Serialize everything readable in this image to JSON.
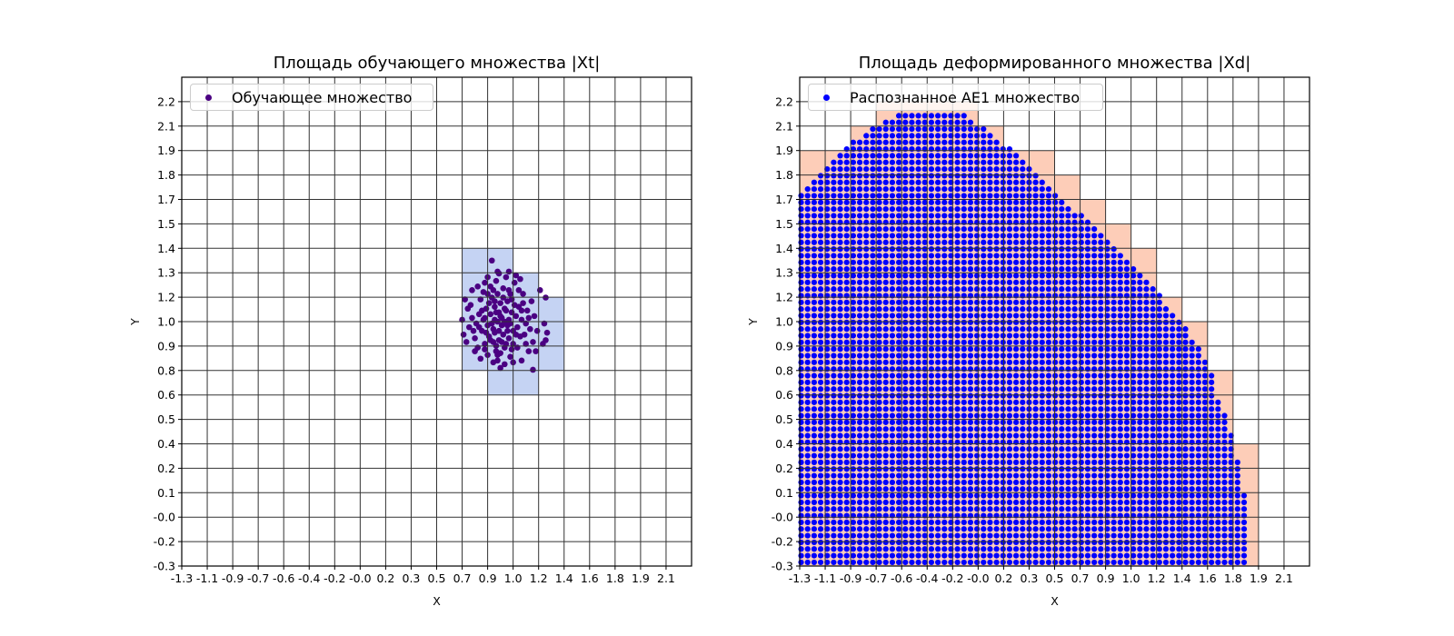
{
  "chart_data": [
    {
      "type": "scatter",
      "title": "Площадь обучающего множества |Xt|",
      "xlabel": "X",
      "ylabel": "Y",
      "xlim": [
        -1.28,
        2.32
      ],
      "ylim": [
        -0.3,
        2.34
      ],
      "grid": true,
      "legend_position": "upper-left",
      "xtick_labels": [
        "-1.3",
        "-1.1",
        "-0.9",
        "-0.7",
        "-0.6",
        "-0.4",
        "-0.2",
        "-0.0",
        "0.2",
        "0.3",
        "0.5",
        "0.7",
        "0.9",
        "1.0",
        "1.2",
        "1.4",
        "1.6",
        "1.8",
        "1.9",
        "2.1"
      ],
      "ytick_labels": [
        "-0.3",
        "-0.2",
        "-0.0",
        "0.1",
        "0.2",
        "0.4",
        "0.5",
        "0.6",
        "0.8",
        "0.9",
        "1.0",
        "1.2",
        "1.3",
        "1.4",
        "1.5",
        "1.7",
        "1.8",
        "1.9",
        "2.1",
        "2.2"
      ],
      "cell_color": "#c5d3f3",
      "cells": [
        {
          "x0": "0.7",
          "x1": "0.9",
          "y0": "0.8",
          "y1": "1.4"
        },
        {
          "x0": "0.9",
          "x1": "1.0",
          "y0": "0.6",
          "y1": "1.4"
        },
        {
          "x0": "1.0",
          "x1": "1.2",
          "y0": "0.6",
          "y1": "1.3"
        },
        {
          "x0": "1.2",
          "x1": "1.4",
          "y0": "0.8",
          "y1": "1.2"
        }
      ],
      "series": [
        {
          "name": "Обучающее множество",
          "color": "#4b0082",
          "points": [
            [
              0.95,
              1.02
            ],
            [
              0.97,
              1.05
            ],
            [
              0.92,
              0.98
            ],
            [
              1.01,
              1.08
            ],
            [
              0.88,
              1.0
            ],
            [
              0.99,
              0.95
            ],
            [
              1.04,
              1.01
            ],
            [
              0.93,
              1.1
            ],
            [
              0.9,
              1.06
            ],
            [
              1.06,
              0.97
            ],
            [
              0.96,
              0.92
            ],
            [
              0.85,
              1.03
            ],
            [
              1.02,
              1.13
            ],
            [
              0.94,
              0.89
            ],
            [
              1.08,
              1.05
            ],
            [
              0.91,
              1.15
            ],
            [
              0.98,
              1.0
            ],
            [
              1.0,
              1.02
            ],
            [
              0.96,
              1.07
            ],
            [
              0.93,
              1.03
            ],
            [
              0.89,
              0.94
            ],
            [
              1.03,
              0.93
            ],
            [
              1.1,
              1.1
            ],
            [
              0.87,
              1.09
            ],
            [
              0.95,
              1.17
            ],
            [
              1.05,
              1.14
            ],
            [
              0.92,
              0.91
            ],
            [
              1.0,
              0.88
            ],
            [
              0.97,
              0.85
            ],
            [
              1.09,
              0.99
            ],
            [
              0.84,
              0.97
            ],
            [
              0.82,
              1.06
            ],
            [
              0.8,
              1.01
            ],
            [
              1.12,
              1.03
            ],
            [
              1.14,
              0.95
            ],
            [
              0.86,
              0.9
            ],
            [
              0.99,
              1.2
            ],
            [
              1.03,
              1.19
            ],
            [
              0.9,
              1.21
            ],
            [
              1.07,
              1.23
            ],
            [
              0.94,
              1.24
            ],
            [
              1.13,
              1.17
            ],
            [
              0.83,
              1.14
            ],
            [
              0.79,
              0.93
            ],
            [
              1.16,
              1.08
            ],
            [
              1.18,
              0.98
            ],
            [
              0.81,
              0.88
            ],
            [
              0.88,
              0.84
            ],
            [
              0.95,
              0.81
            ],
            [
              1.04,
              0.83
            ],
            [
              1.09,
              0.88
            ],
            [
              1.15,
              0.9
            ],
            [
              0.77,
              1.04
            ],
            [
              0.78,
              0.97
            ],
            [
              0.76,
              1.11
            ],
            [
              0.85,
              1.18
            ],
            [
              1.01,
              1.26
            ],
            [
              0.96,
              1.28
            ],
            [
              0.88,
              1.26
            ],
            [
              1.11,
              1.25
            ],
            [
              1.19,
              1.13
            ],
            [
              1.21,
              1.05
            ],
            [
              1.23,
              0.97
            ],
            [
              1.2,
              0.91
            ],
            [
              1.17,
              0.86
            ],
            [
              1.25,
              1.19
            ],
            [
              1.29,
              1.15
            ],
            [
              1.28,
              1.01
            ],
            [
              1.3,
              0.96
            ],
            [
              1.27,
              0.9
            ],
            [
              1.22,
              0.86
            ],
            [
              1.29,
              0.92
            ],
            [
              0.74,
              1.09
            ],
            [
              0.75,
              0.99
            ],
            [
              0.79,
              0.86
            ],
            [
              0.83,
              0.82
            ],
            [
              0.92,
              0.8
            ],
            [
              1.0,
              0.79
            ],
            [
              1.06,
              0.8
            ],
            [
              1.12,
              0.81
            ],
            [
              0.97,
              0.77
            ],
            [
              1.2,
              0.76
            ],
            [
              0.91,
              1.35
            ],
            [
              0.95,
              1.29
            ],
            [
              1.03,
              1.29
            ],
            [
              1.08,
              1.27
            ],
            [
              0.81,
              1.21
            ],
            [
              0.77,
              1.19
            ],
            [
              0.86,
              1.23
            ],
            [
              0.93,
              0.96
            ],
            [
              0.98,
              0.91
            ],
            [
              1.02,
              0.97
            ],
            [
              1.05,
              1.07
            ],
            [
              0.91,
              1.01
            ],
            [
              0.89,
              1.12
            ],
            [
              1.07,
              1.11
            ],
            [
              0.97,
              1.12
            ],
            [
              1.01,
              0.9
            ],
            [
              0.94,
              0.86
            ],
            [
              1.06,
              0.9
            ],
            [
              0.87,
              0.96
            ],
            [
              1.11,
              0.94
            ],
            [
              1.13,
              1.12
            ],
            [
              0.84,
              1.08
            ],
            [
              0.99,
              1.15
            ],
            [
              0.92,
              1.19
            ],
            [
              1.04,
              1.17
            ],
            [
              1.1,
              1.19
            ],
            [
              0.88,
              1.17
            ],
            [
              1.15,
              1.01
            ],
            [
              0.82,
              0.99
            ],
            [
              1.17,
              1.04
            ],
            [
              1.12,
              1.08
            ],
            [
              0.86,
              1.04
            ],
            [
              0.96,
              0.97
            ],
            [
              1.03,
              1.03
            ],
            [
              0.94,
              1.07
            ],
            [
              1.0,
              1.09
            ],
            [
              0.9,
              0.92
            ],
            [
              1.08,
              0.95
            ],
            [
              0.98,
              1.04
            ],
            [
              1.02,
              1.0
            ],
            [
              0.93,
              1.13
            ],
            [
              1.05,
              0.87
            ],
            [
              0.95,
              0.84
            ],
            [
              0.86,
              0.87
            ],
            [
              0.7,
              1.03
            ],
            [
              0.71,
              0.95
            ],
            [
              0.72,
              1.14
            ],
            [
              0.73,
              0.91
            ]
          ]
        }
      ]
    },
    {
      "type": "scatter",
      "title": "Площадь деформированного множества |Xd|",
      "xlabel": "X",
      "ylabel": "Y",
      "xlim": [
        -1.28,
        2.32
      ],
      "ylim": [
        -0.3,
        2.34
      ],
      "grid": true,
      "legend_position": "upper-left",
      "xtick_labels": [
        "-1.3",
        "-1.1",
        "-0.9",
        "-0.7",
        "-0.6",
        "-0.4",
        "-0.2",
        "-0.0",
        "0.2",
        "0.3",
        "0.5",
        "0.7",
        "0.9",
        "1.0",
        "1.2",
        "1.4",
        "1.6",
        "1.8",
        "1.9",
        "2.1"
      ],
      "ytick_labels": [
        "-0.3",
        "-0.2",
        "-0.0",
        "0.1",
        "0.2",
        "0.4",
        "0.5",
        "0.6",
        "0.8",
        "0.9",
        "1.0",
        "1.2",
        "1.3",
        "1.4",
        "1.5",
        "1.7",
        "1.8",
        "1.9",
        "2.1",
        "2.2"
      ],
      "cell_color": "#fdcdb8",
      "cells": [
        {
          "x0": "-1.3",
          "x1": "-1.1",
          "y0": "-0.3",
          "y1": "1.9"
        },
        {
          "x0": "-1.1",
          "x1": "-0.9",
          "y0": "-0.3",
          "y1": "1.9"
        },
        {
          "x0": "-0.9",
          "x1": "-0.7",
          "y0": "-0.3",
          "y1": "2.1"
        },
        {
          "x0": "-0.7",
          "x1": "-0.6",
          "y0": "-0.3",
          "y1": "2.2"
        },
        {
          "x0": "-0.6",
          "x1": "-0.4",
          "y0": "-0.3",
          "y1": "2.2"
        },
        {
          "x0": "-0.4",
          "x1": "-0.2",
          "y0": "-0.3",
          "y1": "2.2"
        },
        {
          "x0": "-0.2",
          "x1": "-0.0",
          "y0": "-0.3",
          "y1": "2.2"
        },
        {
          "x0": "-0.0",
          "x1": "0.2",
          "y0": "-0.3",
          "y1": "2.1"
        },
        {
          "x0": "0.2",
          "x1": "0.3",
          "y0": "-0.3",
          "y1": "1.9"
        },
        {
          "x0": "0.3",
          "x1": "0.5",
          "y0": "-0.3",
          "y1": "1.9"
        },
        {
          "x0": "0.5",
          "x1": "0.7",
          "y0": "-0.3",
          "y1": "1.8"
        },
        {
          "x0": "0.7",
          "x1": "0.9",
          "y0": "-0.3",
          "y1": "1.7"
        },
        {
          "x0": "0.9",
          "x1": "1.0",
          "y0": "-0.3",
          "y1": "1.5"
        },
        {
          "x0": "1.0",
          "x1": "1.2",
          "y0": "-0.3",
          "y1": "1.4"
        },
        {
          "x0": "1.2",
          "x1": "1.4",
          "y0": "-0.3",
          "y1": "1.2"
        },
        {
          "x0": "1.4",
          "x1": "1.6",
          "y0": "-0.3",
          "y1": "1.0"
        },
        {
          "x0": "1.6",
          "x1": "1.8",
          "y0": "-0.3",
          "y1": "0.8"
        },
        {
          "x0": "1.8",
          "x1": "1.9",
          "y0": "-0.3",
          "y1": "0.4"
        }
      ],
      "series": [
        {
          "name": "Распознанное AE1 множество",
          "color": "#0000ff",
          "lattice": {
            "x_start": -1.27,
            "x_step": 0.046,
            "y_start": -0.28,
            "y_step": 0.036,
            "boundary_y_xmin_xmax": [
              [
                -0.3,
                -1.28,
                1.88
              ],
              [
                -0.06,
                -1.28,
                1.88
              ],
              [
                0.17,
                -1.28,
                1.85
              ],
              [
                0.3,
                -1.28,
                1.81
              ],
              [
                0.47,
                -1.28,
                1.75
              ],
              [
                0.61,
                -1.28,
                1.67
              ],
              [
                0.755,
                -1.28,
                1.62
              ],
              [
                0.9,
                -1.28,
                1.53
              ],
              [
                1.04,
                -1.28,
                1.38
              ],
              [
                1.19,
                -1.28,
                1.23
              ],
              [
                1.33,
                -1.28,
                1.08
              ],
              [
                1.44,
                -1.28,
                0.95
              ],
              [
                1.47,
                -1.28,
                0.87
              ],
              [
                1.55,
                -1.28,
                0.79
              ],
              [
                1.62,
                -1.28,
                0.66
              ],
              [
                1.69,
                -1.28,
                0.55
              ],
              [
                1.73,
                -1.24,
                0.5
              ],
              [
                1.77,
                -1.2,
                0.47
              ],
              [
                1.8,
                -1.16,
                0.4
              ],
              [
                1.84,
                -1.13,
                0.37
              ],
              [
                1.87,
                -1.06,
                0.33
              ],
              [
                1.91,
                -1.02,
                0.26
              ],
              [
                1.95,
                -0.98,
                0.22
              ],
              [
                1.99,
                -0.91,
                0.14
              ],
              [
                2.02,
                -0.84,
                0.09
              ],
              [
                2.06,
                -0.77,
                0.05
              ],
              [
                2.095,
                -0.69,
                -0.04
              ],
              [
                2.135,
                -0.6,
                -0.11
              ]
            ]
          }
        }
      ]
    }
  ]
}
